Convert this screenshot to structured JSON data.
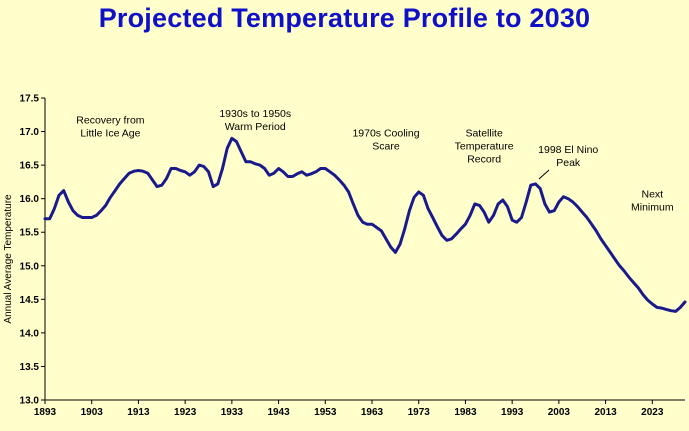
{
  "chart_data": {
    "type": "line",
    "title": "Projected Temperature Profile to 2030",
    "ylabel": "Annual Average Temperature",
    "xlabel": "",
    "xlim": [
      1893,
      2030
    ],
    "ylim": [
      13.0,
      17.5
    ],
    "y_ticks": [
      "13.0",
      "13.5",
      "14.0",
      "14.5",
      "15.0",
      "15.5",
      "16.0",
      "16.5",
      "17.0",
      "17.5"
    ],
    "x_ticks": [
      "1893",
      "1903",
      "1913",
      "1923",
      "1933",
      "1943",
      "1953",
      "1963",
      "1973",
      "1983",
      "1993",
      "2003",
      "2013",
      "2023"
    ],
    "grid": false,
    "series": [
      {
        "color": "#1a1a8c",
        "points": [
          [
            1893,
            15.7
          ],
          [
            1894,
            15.7
          ],
          [
            1895,
            15.85
          ],
          [
            1896,
            16.05
          ],
          [
            1897,
            16.12
          ],
          [
            1898,
            15.95
          ],
          [
            1899,
            15.82
          ],
          [
            1900,
            15.75
          ],
          [
            1901,
            15.72
          ],
          [
            1902,
            15.72
          ],
          [
            1903,
            15.72
          ],
          [
            1904,
            15.75
          ],
          [
            1905,
            15.82
          ],
          [
            1906,
            15.9
          ],
          [
            1907,
            16.02
          ],
          [
            1908,
            16.12
          ],
          [
            1909,
            16.22
          ],
          [
            1910,
            16.3
          ],
          [
            1911,
            16.38
          ],
          [
            1912,
            16.41
          ],
          [
            1913,
            16.42
          ],
          [
            1914,
            16.41
          ],
          [
            1915,
            16.38
          ],
          [
            1916,
            16.28
          ],
          [
            1917,
            16.18
          ],
          [
            1918,
            16.2
          ],
          [
            1919,
            16.3
          ],
          [
            1920,
            16.45
          ],
          [
            1921,
            16.45
          ],
          [
            1922,
            16.42
          ],
          [
            1923,
            16.4
          ],
          [
            1924,
            16.35
          ],
          [
            1925,
            16.4
          ],
          [
            1926,
            16.5
          ],
          [
            1927,
            16.48
          ],
          [
            1928,
            16.4
          ],
          [
            1929,
            16.18
          ],
          [
            1930,
            16.22
          ],
          [
            1931,
            16.45
          ],
          [
            1932,
            16.75
          ],
          [
            1933,
            16.9
          ],
          [
            1934,
            16.85
          ],
          [
            1935,
            16.7
          ],
          [
            1936,
            16.55
          ],
          [
            1937,
            16.55
          ],
          [
            1938,
            16.52
          ],
          [
            1939,
            16.5
          ],
          [
            1940,
            16.45
          ],
          [
            1941,
            16.35
          ],
          [
            1942,
            16.38
          ],
          [
            1943,
            16.45
          ],
          [
            1944,
            16.4
          ],
          [
            1945,
            16.33
          ],
          [
            1946,
            16.33
          ],
          [
            1947,
            16.37
          ],
          [
            1948,
            16.4
          ],
          [
            1949,
            16.35
          ],
          [
            1950,
            16.37
          ],
          [
            1951,
            16.4
          ],
          [
            1952,
            16.45
          ],
          [
            1953,
            16.45
          ],
          [
            1954,
            16.4
          ],
          [
            1955,
            16.35
          ],
          [
            1956,
            16.28
          ],
          [
            1957,
            16.2
          ],
          [
            1958,
            16.1
          ],
          [
            1959,
            15.92
          ],
          [
            1960,
            15.75
          ],
          [
            1961,
            15.65
          ],
          [
            1962,
            15.62
          ],
          [
            1963,
            15.62
          ],
          [
            1964,
            15.57
          ],
          [
            1965,
            15.52
          ],
          [
            1966,
            15.4
          ],
          [
            1967,
            15.28
          ],
          [
            1968,
            15.2
          ],
          [
            1969,
            15.32
          ],
          [
            1970,
            15.55
          ],
          [
            1971,
            15.82
          ],
          [
            1972,
            16.02
          ],
          [
            1973,
            16.1
          ],
          [
            1974,
            16.05
          ],
          [
            1975,
            15.85
          ],
          [
            1976,
            15.72
          ],
          [
            1977,
            15.58
          ],
          [
            1978,
            15.45
          ],
          [
            1979,
            15.38
          ],
          [
            1980,
            15.4
          ],
          [
            1981,
            15.47
          ],
          [
            1982,
            15.55
          ],
          [
            1983,
            15.62
          ],
          [
            1984,
            15.75
          ],
          [
            1985,
            15.92
          ],
          [
            1986,
            15.9
          ],
          [
            1987,
            15.8
          ],
          [
            1988,
            15.65
          ],
          [
            1989,
            15.75
          ],
          [
            1990,
            15.92
          ],
          [
            1991,
            15.98
          ],
          [
            1992,
            15.88
          ],
          [
            1993,
            15.68
          ],
          [
            1994,
            15.65
          ],
          [
            1995,
            15.72
          ],
          [
            1996,
            15.95
          ],
          [
            1997,
            16.2
          ],
          [
            1998,
            16.22
          ],
          [
            1999,
            16.15
          ],
          [
            2000,
            15.92
          ],
          [
            2001,
            15.8
          ],
          [
            2002,
            15.82
          ],
          [
            2003,
            15.95
          ],
          [
            2004,
            16.03
          ],
          [
            2005,
            16.0
          ],
          [
            2006,
            15.95
          ],
          [
            2007,
            15.88
          ],
          [
            2008,
            15.8
          ],
          [
            2009,
            15.72
          ],
          [
            2010,
            15.62
          ],
          [
            2011,
            15.52
          ],
          [
            2012,
            15.4
          ],
          [
            2013,
            15.3
          ],
          [
            2014,
            15.2
          ],
          [
            2015,
            15.1
          ],
          [
            2016,
            15.0
          ],
          [
            2017,
            14.92
          ],
          [
            2018,
            14.83
          ],
          [
            2019,
            14.75
          ],
          [
            2020,
            14.67
          ],
          [
            2021,
            14.57
          ],
          [
            2022,
            14.49
          ],
          [
            2023,
            14.43
          ],
          [
            2024,
            14.38
          ],
          [
            2025,
            14.37
          ],
          [
            2026,
            14.35
          ],
          [
            2027,
            14.33
          ],
          [
            2028,
            14.32
          ],
          [
            2029,
            14.38
          ],
          [
            2030,
            14.46
          ]
        ]
      }
    ],
    "annotations": [
      {
        "lines": [
          "Recovery from",
          "Little Ice Age"
        ],
        "x": 1907,
        "y": 17.12
      },
      {
        "lines": [
          "1930s to 1950s",
          "Warm Period"
        ],
        "x": 1938,
        "y": 17.22
      },
      {
        "lines": [
          "1970s Cooling",
          "Scare"
        ],
        "x": 1966,
        "y": 16.93
      },
      {
        "lines": [
          "Satellite",
          "Temperature",
          "Record"
        ],
        "x": 1987,
        "y": 16.93
      },
      {
        "lines": [
          "1998 El Nino",
          "Peak"
        ],
        "x": 2005,
        "y": 16.68
      },
      {
        "lines": [
          "Next",
          "Minimum"
        ],
        "x": 2023,
        "y": 16.02
      }
    ]
  }
}
